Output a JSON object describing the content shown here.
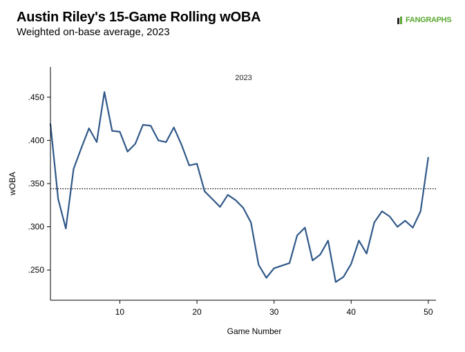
{
  "header": {
    "title": "Austin Riley's 15-Game Rolling wOBA",
    "subtitle": "Weighted on-base average, 2023",
    "logo_text": "FANGRAPHS"
  },
  "colors": {
    "line": "#2f5788",
    "logo_green": "#5aa832"
  },
  "chart_data": {
    "type": "line",
    "title": "Austin Riley's 15-Game Rolling wOBA",
    "subtitle": "Weighted on-base average, 2023",
    "annotation": "2023",
    "xlabel": "Game Number",
    "ylabel": "wOBA",
    "xlim": [
      1,
      51
    ],
    "ylim": [
      0.215,
      0.485
    ],
    "x_ticks": [
      10,
      20,
      30,
      40,
      50
    ],
    "x_tick_labels": [
      "10",
      "20",
      "30",
      "40",
      "50"
    ],
    "y_ticks": [
      0.25,
      0.3,
      0.35,
      0.4,
      0.45
    ],
    "y_tick_labels": [
      ".250",
      ".300",
      ".350",
      ".400",
      ".450"
    ],
    "grid": false,
    "reference_line": {
      "y": 0.344,
      "style": "dotted"
    },
    "series": [
      {
        "x": [
          1,
          2,
          3,
          4,
          5,
          6,
          7,
          8,
          9,
          10,
          11,
          12,
          13,
          14,
          15,
          16,
          17,
          18,
          19,
          20,
          21,
          22,
          23,
          24,
          25,
          26,
          27,
          28,
          29,
          30,
          31,
          32,
          33,
          34,
          35,
          36,
          37,
          38,
          39,
          40,
          41,
          42,
          43,
          44,
          45,
          46,
          47,
          48,
          49,
          50
        ],
        "values": [
          0.419,
          0.332,
          0.298,
          0.367,
          0.391,
          0.414,
          0.398,
          0.456,
          0.411,
          0.41,
          0.387,
          0.396,
          0.418,
          0.417,
          0.4,
          0.398,
          0.415,
          0.395,
          0.371,
          0.373,
          0.341,
          0.332,
          0.323,
          0.337,
          0.331,
          0.322,
          0.305,
          0.256,
          0.241,
          0.252,
          0.255,
          0.258,
          0.29,
          0.299,
          0.261,
          0.268,
          0.284,
          0.236,
          0.242,
          0.257,
          0.284,
          0.269,
          0.305,
          0.318,
          0.312,
          0.3,
          0.307,
          0.299,
          0.318,
          0.38
        ]
      }
    ]
  }
}
